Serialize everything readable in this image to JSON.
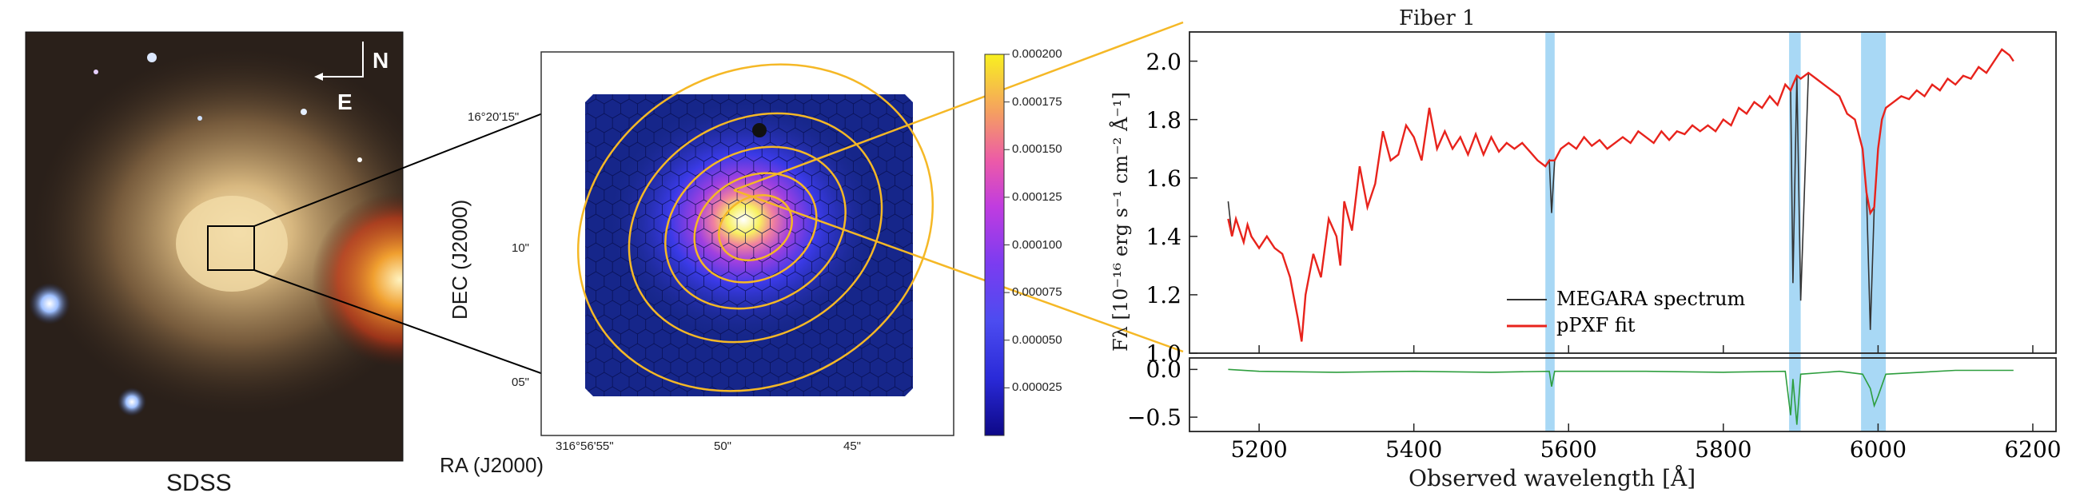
{
  "sdss_panel": {
    "label": "SDSS",
    "compass_north": "N",
    "compass_east": "E"
  },
  "map_panel": {
    "xlabel": "RA (J2000)",
    "ylabel": "DEC (J2000)",
    "xticks": [
      "316°56'55\"",
      "50\"",
      "45\""
    ],
    "yticks": [
      "16°20'15\"",
      "10\"",
      "05\""
    ],
    "colorbar_ticks": [
      "0.000200",
      "0.000175",
      "0.000150",
      "0.000125",
      "0.000100",
      "0.000075",
      "0.000050",
      "0.000025"
    ],
    "colorbar_range": [
      0.0,
      0.0002
    ],
    "colormap": "plasma"
  },
  "chart_data": [
    {
      "type": "line",
      "title": "Fiber 1",
      "xlabel": "Observed wavelength [Å]",
      "ylabel": "Fλ [10⁻¹⁶ erg s⁻¹ cm⁻² Å⁻¹]",
      "xlim": [
        5110,
        6230
      ],
      "ylim": [
        1.0,
        2.1
      ],
      "xticks": [
        "5200",
        "5400",
        "5600",
        "5800",
        "6000",
        "6200"
      ],
      "yticks": [
        "1.0",
        "1.2",
        "1.4",
        "1.6",
        "1.8",
        "2.0"
      ],
      "legend_position": "lower-center",
      "masked_regions": [
        [
          5570,
          5582
        ],
        [
          5885,
          5900
        ],
        [
          5978,
          6010
        ]
      ],
      "mask_color": "#a8d8f5",
      "series": [
        {
          "name": "MEGARA spectrum",
          "color": "#333333",
          "x": [
            5160,
            5165,
            5170,
            5180,
            5185,
            5190,
            5200,
            5210,
            5220,
            5230,
            5240,
            5250,
            5255,
            5260,
            5270,
            5280,
            5290,
            5300,
            5305,
            5310,
            5320,
            5330,
            5340,
            5350,
            5360,
            5370,
            5380,
            5390,
            5400,
            5410,
            5420,
            5430,
            5440,
            5450,
            5460,
            5470,
            5480,
            5490,
            5500,
            5510,
            5520,
            5530,
            5540,
            5550,
            5560,
            5570,
            5575,
            5578,
            5582,
            5590,
            5600,
            5610,
            5620,
            5630,
            5640,
            5650,
            5660,
            5670,
            5680,
            5690,
            5700,
            5710,
            5720,
            5730,
            5740,
            5750,
            5760,
            5770,
            5780,
            5790,
            5800,
            5810,
            5820,
            5830,
            5840,
            5850,
            5860,
            5870,
            5880,
            5887,
            5890,
            5895,
            5900,
            5910,
            5920,
            5930,
            5940,
            5950,
            5960,
            5970,
            5980,
            5985,
            5990,
            5995,
            6000,
            6005,
            6010,
            6020,
            6030,
            6040,
            6050,
            6060,
            6070,
            6080,
            6090,
            6100,
            6110,
            6120,
            6130,
            6140,
            6150,
            6160,
            6170,
            6175
          ],
          "y": [
            1.52,
            1.4,
            1.46,
            1.38,
            1.44,
            1.4,
            1.36,
            1.4,
            1.36,
            1.34,
            1.26,
            1.12,
            1.04,
            1.2,
            1.34,
            1.26,
            1.46,
            1.4,
            1.3,
            1.52,
            1.42,
            1.64,
            1.5,
            1.58,
            1.76,
            1.66,
            1.68,
            1.78,
            1.74,
            1.66,
            1.84,
            1.7,
            1.76,
            1.7,
            1.74,
            1.68,
            1.75,
            1.68,
            1.74,
            1.69,
            1.72,
            1.7,
            1.72,
            1.69,
            1.66,
            1.64,
            1.66,
            1.48,
            1.66,
            1.7,
            1.72,
            1.7,
            1.74,
            1.71,
            1.73,
            1.7,
            1.72,
            1.74,
            1.72,
            1.76,
            1.74,
            1.72,
            1.76,
            1.73,
            1.76,
            1.75,
            1.78,
            1.76,
            1.78,
            1.76,
            1.8,
            1.78,
            1.84,
            1.82,
            1.86,
            1.84,
            1.88,
            1.85,
            1.92,
            1.9,
            1.24,
            1.95,
            1.18,
            1.96,
            1.94,
            1.92,
            1.9,
            1.88,
            1.82,
            1.8,
            1.7,
            1.55,
            1.08,
            1.5,
            1.7,
            1.8,
            1.84,
            1.86,
            1.88,
            1.87,
            1.9,
            1.88,
            1.92,
            1.9,
            1.94,
            1.92,
            1.95,
            1.94,
            1.98,
            1.96,
            2.0,
            2.04,
            2.02,
            2.0
          ]
        },
        {
          "name": "pPXF fit",
          "color": "#e8231c",
          "x": [
            5160,
            5165,
            5170,
            5180,
            5185,
            5190,
            5200,
            5210,
            5220,
            5230,
            5240,
            5250,
            5255,
            5260,
            5270,
            5280,
            5290,
            5300,
            5305,
            5310,
            5320,
            5330,
            5340,
            5350,
            5360,
            5370,
            5380,
            5390,
            5400,
            5410,
            5420,
            5430,
            5440,
            5450,
            5460,
            5470,
            5480,
            5490,
            5500,
            5510,
            5520,
            5530,
            5540,
            5550,
            5560,
            5570,
            5575,
            5578,
            5582,
            5590,
            5600,
            5610,
            5620,
            5630,
            5640,
            5650,
            5660,
            5670,
            5680,
            5690,
            5700,
            5710,
            5720,
            5730,
            5740,
            5750,
            5760,
            5770,
            5780,
            5790,
            5800,
            5810,
            5820,
            5830,
            5840,
            5850,
            5860,
            5870,
            5880,
            5887,
            5890,
            5895,
            5900,
            5910,
            5920,
            5930,
            5940,
            5950,
            5960,
            5970,
            5980,
            5985,
            5990,
            5995,
            6000,
            6005,
            6010,
            6020,
            6030,
            6040,
            6050,
            6060,
            6070,
            6080,
            6090,
            6100,
            6110,
            6120,
            6130,
            6140,
            6150,
            6160,
            6170,
            6175
          ],
          "y": [
            1.46,
            1.4,
            1.46,
            1.38,
            1.44,
            1.4,
            1.36,
            1.4,
            1.36,
            1.34,
            1.26,
            1.12,
            1.04,
            1.2,
            1.34,
            1.26,
            1.46,
            1.4,
            1.3,
            1.52,
            1.42,
            1.64,
            1.5,
            1.58,
            1.76,
            1.66,
            1.68,
            1.78,
            1.74,
            1.66,
            1.84,
            1.7,
            1.76,
            1.7,
            1.74,
            1.68,
            1.75,
            1.68,
            1.74,
            1.69,
            1.72,
            1.7,
            1.72,
            1.69,
            1.66,
            1.64,
            1.66,
            1.66,
            1.66,
            1.7,
            1.72,
            1.7,
            1.74,
            1.71,
            1.73,
            1.7,
            1.72,
            1.74,
            1.72,
            1.76,
            1.74,
            1.72,
            1.76,
            1.73,
            1.76,
            1.75,
            1.78,
            1.76,
            1.78,
            1.76,
            1.8,
            1.78,
            1.84,
            1.82,
            1.86,
            1.84,
            1.88,
            1.85,
            1.92,
            1.9,
            1.92,
            1.95,
            1.94,
            1.96,
            1.94,
            1.92,
            1.9,
            1.88,
            1.82,
            1.8,
            1.7,
            1.55,
            1.48,
            1.5,
            1.7,
            1.8,
            1.84,
            1.86,
            1.88,
            1.87,
            1.9,
            1.88,
            1.92,
            1.9,
            1.94,
            1.92,
            1.95,
            1.94,
            1.98,
            1.96,
            2.0,
            2.04,
            2.02,
            2.0
          ]
        }
      ]
    },
    {
      "type": "line",
      "xlim": [
        5110,
        6230
      ],
      "ylim": [
        -0.65,
        0.12
      ],
      "yticks": [
        "0.0",
        "−0.5"
      ],
      "series": [
        {
          "name": "",
          "color": "#2e9e3e",
          "x": [
            5160,
            5200,
            5300,
            5400,
            5500,
            5575,
            5578,
            5582,
            5600,
            5700,
            5800,
            5880,
            5887,
            5890,
            5895,
            5900,
            5950,
            5980,
            5990,
            5995,
            6000,
            6010,
            6100,
            6175
          ],
          "y": [
            0.0,
            -0.02,
            -0.03,
            -0.02,
            -0.03,
            -0.02,
            -0.18,
            -0.02,
            -0.02,
            -0.02,
            -0.03,
            -0.02,
            -0.48,
            -0.1,
            -0.58,
            -0.05,
            -0.02,
            -0.05,
            -0.2,
            -0.38,
            -0.28,
            -0.05,
            -0.01,
            -0.01
          ]
        }
      ]
    }
  ]
}
